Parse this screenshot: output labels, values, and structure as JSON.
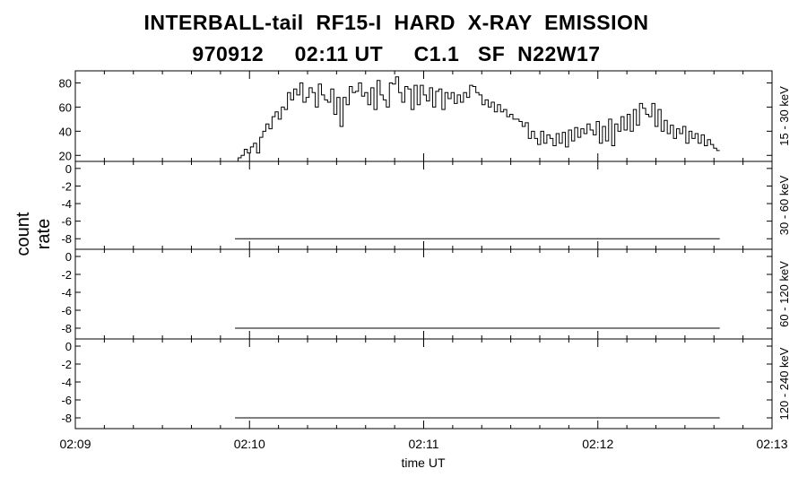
{
  "title_line1": "INTERBALL-tail  RF15-I  HARD  X-RAY  EMISSION",
  "title_line2": "970912     02:11 UT     C1.1   SF  N22W17",
  "chart_data": {
    "type": "line",
    "ylabel": "count rate",
    "xlabel": "time UT",
    "x_ticks": [
      "02:09",
      "02:10",
      "02:11",
      "02:12",
      "02:13"
    ],
    "panels": [
      {
        "name": "15 - 30 keV",
        "ylim": [
          15,
          90
        ],
        "yticks": [
          20,
          40,
          60,
          80
        ],
        "x_range_seconds_after_0209": [
          55,
          222
        ],
        "values": [
          15,
          18,
          20,
          25,
          22,
          27,
          30,
          22,
          35,
          40,
          46,
          42,
          52,
          56,
          50,
          60,
          58,
          72,
          66,
          75,
          70,
          80,
          64,
          68,
          76,
          72,
          60,
          79,
          70,
          66,
          64,
          75,
          54,
          68,
          44,
          68,
          62,
          77,
          72,
          73,
          80,
          69,
          72,
          62,
          76,
          58,
          82,
          70,
          66,
          60,
          80,
          79,
          85,
          72,
          64,
          77,
          75,
          58,
          78,
          62,
          78,
          70,
          65,
          76,
          60,
          73,
          75,
          58,
          72,
          67,
          72,
          63,
          70,
          64,
          72,
          68,
          78,
          77,
          72,
          70,
          62,
          66,
          60,
          64,
          56,
          62,
          56,
          58,
          52,
          54,
          50,
          50,
          48,
          44,
          47,
          34,
          40,
          34,
          29,
          40,
          30,
          37,
          34,
          28,
          38,
          30,
          39,
          27,
          41,
          32,
          43,
          35,
          42,
          38,
          46,
          41,
          37,
          48,
          30,
          44,
          32,
          50,
          28,
          46,
          40,
          52,
          41,
          54,
          40,
          58,
          45,
          63,
          59,
          54,
          52,
          63,
          44,
          58,
          40,
          49,
          38,
          45,
          34,
          42,
          38,
          44,
          30,
          40,
          34,
          38,
          30,
          37,
          28,
          33,
          29,
          26,
          24
        ]
      },
      {
        "name": "30 - 60 keV",
        "ylim": [
          -9.2,
          0.8
        ],
        "yticks": [
          -8,
          -6,
          -4,
          -2,
          0
        ],
        "constant": -8,
        "x_range_seconds_after_0209": [
          55,
          222
        ]
      },
      {
        "name": "60 - 120 keV",
        "ylim": [
          -9.2,
          0.8
        ],
        "yticks": [
          -8,
          -6,
          -4,
          -2,
          0
        ],
        "constant": -8,
        "x_range_seconds_after_0209": [
          55,
          222
        ]
      },
      {
        "name": "120 - 240 keV",
        "ylim": [
          -9.2,
          0.8
        ],
        "yticks": [
          -8,
          -6,
          -4,
          -2,
          0
        ],
        "constant": -8,
        "x_range_seconds_after_0209": [
          55,
          222
        ]
      }
    ]
  }
}
